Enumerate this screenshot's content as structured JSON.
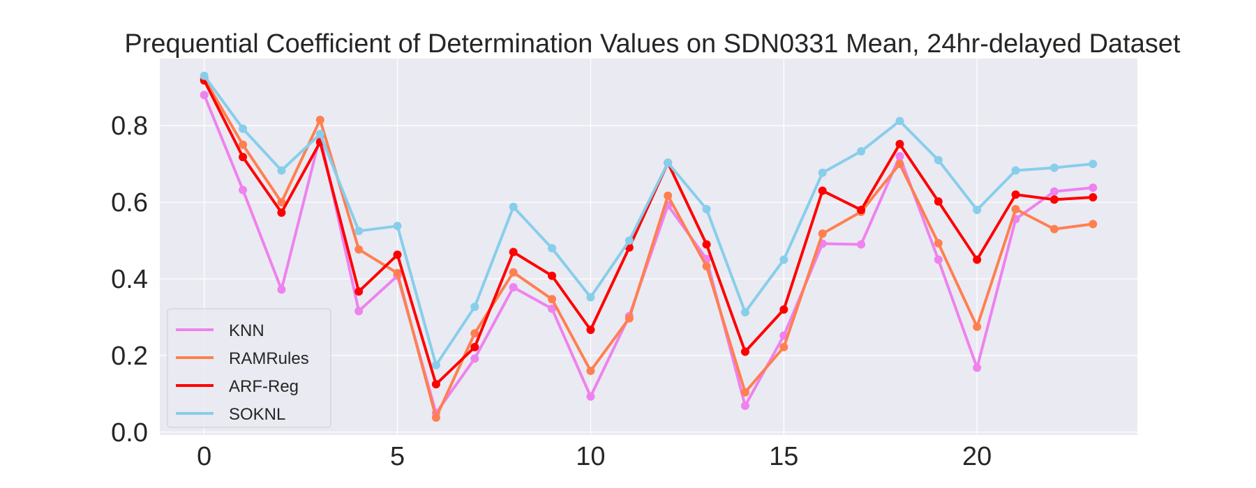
{
  "chart_data": {
    "type": "line",
    "title": "Prequential Coefficient of Determination Values on SDN0331 Mean, 24hr-delayed Dataset",
    "xlabel": "",
    "ylabel": "",
    "xlim": [
      -1.15,
      24.15
    ],
    "ylim": [
      -0.0075,
      0.975
    ],
    "x_ticks": [
      0,
      5,
      10,
      15,
      20
    ],
    "y_ticks": [
      0.0,
      0.2,
      0.4,
      0.6,
      0.8
    ],
    "y_tick_labels": [
      "0.0",
      "0.2",
      "0.4",
      "0.6",
      "0.8"
    ],
    "grid": true,
    "legend_position": "lower-left",
    "x": [
      0,
      1,
      2,
      3,
      4,
      5,
      6,
      7,
      8,
      9,
      10,
      11,
      12,
      13,
      14,
      15,
      16,
      17,
      18,
      19,
      20,
      21,
      22,
      23
    ],
    "series": [
      {
        "name": "KNN",
        "color": "#ee82ee",
        "values": [
          0.88,
          0.632,
          0.372,
          0.772,
          0.316,
          0.408,
          0.05,
          0.192,
          0.378,
          0.322,
          0.093,
          0.303,
          0.592,
          0.452,
          0.069,
          0.252,
          0.492,
          0.49,
          0.72,
          0.45,
          0.168,
          0.556,
          0.628,
          0.638
        ]
      },
      {
        "name": "RAMRules",
        "color": "#ff7f50",
        "values": [
          0.923,
          0.75,
          0.6,
          0.815,
          0.477,
          0.415,
          0.038,
          0.258,
          0.417,
          0.347,
          0.16,
          0.297,
          0.617,
          0.433,
          0.104,
          0.222,
          0.518,
          0.575,
          0.7,
          0.493,
          0.275,
          0.582,
          0.53,
          0.543
        ]
      },
      {
        "name": "ARF-Reg",
        "color": "#ff0000",
        "values": [
          0.918,
          0.718,
          0.573,
          0.757,
          0.367,
          0.463,
          0.125,
          0.222,
          0.47,
          0.408,
          0.267,
          0.482,
          0.703,
          0.49,
          0.21,
          0.32,
          0.63,
          0.58,
          0.752,
          0.602,
          0.45,
          0.62,
          0.607,
          0.613
        ]
      },
      {
        "name": "SOKNL",
        "color": "#87ceeb",
        "values": [
          0.93,
          0.792,
          0.683,
          0.778,
          0.525,
          0.538,
          0.175,
          0.327,
          0.588,
          0.48,
          0.352,
          0.5,
          0.703,
          0.582,
          0.313,
          0.45,
          0.677,
          0.733,
          0.812,
          0.71,
          0.58,
          0.683,
          0.69,
          0.7
        ]
      }
    ]
  }
}
